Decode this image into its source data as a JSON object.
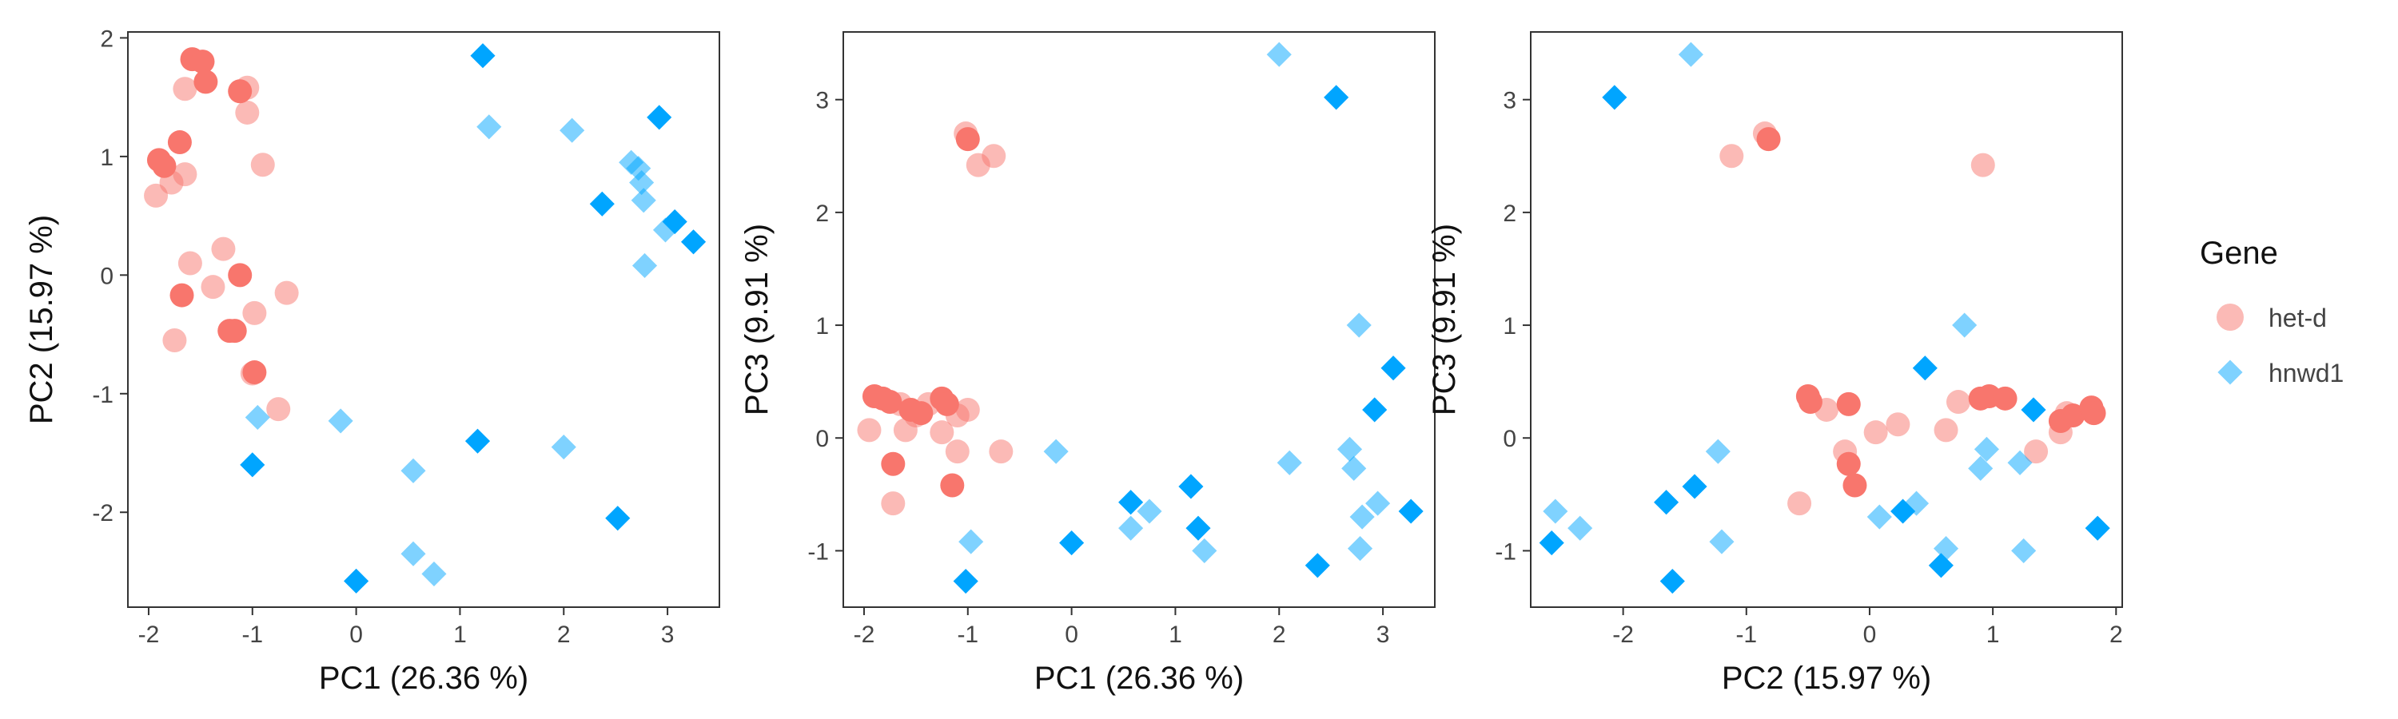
{
  "legend": {
    "title": "Gene",
    "items": [
      {
        "label": "het-d",
        "shape": "circle",
        "color": "#F8766D"
      },
      {
        "label": "hnwd1",
        "shape": "diamond",
        "color": "#00A5FF"
      }
    ]
  },
  "chart_data": [
    {
      "type": "scatter",
      "xlabel": "PC1 (26.36 %)",
      "ylabel": "PC2 (15.97 %)",
      "xlim": [
        -2.2,
        3.5
      ],
      "ylim": [
        -2.8,
        2.05
      ],
      "xticks": [
        -2,
        -1,
        0,
        1,
        2,
        3
      ],
      "yticks": [
        -2,
        -1,
        0,
        1,
        2
      ],
      "grid": false,
      "series": [
        {
          "name": "het-d",
          "light": false,
          "points": [
            [
              -1.58,
              1.82
            ],
            [
              -1.48,
              1.8
            ],
            [
              -1.45,
              1.63
            ],
            [
              -1.12,
              1.55
            ],
            [
              -1.7,
              1.12
            ],
            [
              -1.9,
              0.97
            ],
            [
              -1.85,
              0.92
            ],
            [
              -1.12,
              0.0
            ],
            [
              -1.68,
              -0.17
            ],
            [
              -1.22,
              -0.47
            ],
            [
              -1.17,
              -0.47
            ],
            [
              -0.98,
              -0.82
            ]
          ]
        },
        {
          "name": "het-d",
          "light": true,
          "points": [
            [
              -1.05,
              1.58
            ],
            [
              -1.65,
              1.57
            ],
            [
              -1.05,
              1.37
            ],
            [
              -0.9,
              0.93
            ],
            [
              -1.93,
              0.67
            ],
            [
              -1.78,
              0.78
            ],
            [
              -1.65,
              0.85
            ],
            [
              -1.6,
              0.1
            ],
            [
              -1.28,
              0.22
            ],
            [
              -1.38,
              -0.1
            ],
            [
              -0.98,
              -0.32
            ],
            [
              -0.67,
              -0.15
            ],
            [
              -1.75,
              -0.55
            ],
            [
              -0.75,
              -1.13
            ],
            [
              -1.0,
              -0.83
            ]
          ]
        },
        {
          "name": "hnwd1",
          "light": false,
          "points": [
            [
              1.22,
              1.85
            ],
            [
              2.92,
              1.33
            ],
            [
              2.37,
              0.6
            ],
            [
              3.07,
              0.45
            ],
            [
              3.25,
              0.28
            ],
            [
              1.17,
              -1.4
            ],
            [
              -1.0,
              -1.6
            ],
            [
              2.52,
              -2.05
            ],
            [
              0.0,
              -2.58
            ]
          ]
        },
        {
          "name": "hnwd1",
          "light": true,
          "points": [
            [
              1.28,
              1.25
            ],
            [
              2.08,
              1.22
            ],
            [
              2.65,
              0.95
            ],
            [
              2.72,
              0.9
            ],
            [
              2.75,
              0.78
            ],
            [
              2.77,
              0.63
            ],
            [
              2.98,
              0.38
            ],
            [
              2.78,
              0.08
            ],
            [
              -0.95,
              -1.2
            ],
            [
              -0.15,
              -1.23
            ],
            [
              2.0,
              -1.45
            ],
            [
              0.55,
              -1.65
            ],
            [
              0.55,
              -2.35
            ],
            [
              0.75,
              -2.52
            ]
          ]
        }
      ]
    },
    {
      "type": "scatter",
      "xlabel": "PC1 (26.36 %)",
      "ylabel": "PC3 (9.91 %)",
      "xlim": [
        -2.2,
        3.5
      ],
      "ylim": [
        -1.5,
        3.6
      ],
      "xticks": [
        -2,
        -1,
        0,
        1,
        2,
        3
      ],
      "yticks": [
        -1,
        0,
        1,
        2,
        3
      ],
      "grid": false,
      "series": [
        {
          "name": "het-d",
          "light": false,
          "points": [
            [
              -1.0,
              2.65
            ],
            [
              -1.9,
              0.37
            ],
            [
              -1.82,
              0.35
            ],
            [
              -1.75,
              0.32
            ],
            [
              -1.55,
              0.25
            ],
            [
              -1.45,
              0.22
            ],
            [
              -1.25,
              0.35
            ],
            [
              -1.2,
              0.3
            ],
            [
              -1.72,
              -0.23
            ],
            [
              -1.15,
              -0.42
            ]
          ]
        },
        {
          "name": "het-d",
          "light": true,
          "points": [
            [
              -1.02,
              2.7
            ],
            [
              -0.75,
              2.5
            ],
            [
              -0.9,
              2.42
            ],
            [
              -1.95,
              0.07
            ],
            [
              -1.6,
              0.07
            ],
            [
              -1.38,
              0.3
            ],
            [
              -1.1,
              0.2
            ],
            [
              -1.0,
              0.25
            ],
            [
              -1.25,
              0.05
            ],
            [
              -1.1,
              -0.12
            ],
            [
              -0.68,
              -0.12
            ],
            [
              -1.72,
              -0.58
            ],
            [
              -1.65,
              0.3
            ],
            [
              -1.5,
              0.2
            ]
          ]
        },
        {
          "name": "hnwd1",
          "light": false,
          "points": [
            [
              2.55,
              3.02
            ],
            [
              3.1,
              0.62
            ],
            [
              2.92,
              0.25
            ],
            [
              1.15,
              -0.43
            ],
            [
              0.57,
              -0.57
            ],
            [
              1.22,
              -0.8
            ],
            [
              0.0,
              -0.93
            ],
            [
              3.27,
              -0.65
            ],
            [
              -1.02,
              -1.27
            ],
            [
              2.37,
              -1.13
            ]
          ]
        },
        {
          "name": "hnwd1",
          "light": true,
          "points": [
            [
              2.0,
              3.4
            ],
            [
              2.77,
              1.0
            ],
            [
              2.68,
              -0.1
            ],
            [
              2.72,
              -0.27
            ],
            [
              2.1,
              -0.22
            ],
            [
              -0.15,
              -0.12
            ],
            [
              0.75,
              -0.65
            ],
            [
              0.57,
              -0.8
            ],
            [
              2.95,
              -0.58
            ],
            [
              2.8,
              -0.7
            ],
            [
              1.28,
              -1.0
            ],
            [
              -0.97,
              -0.92
            ],
            [
              2.78,
              -0.98
            ]
          ]
        }
      ]
    },
    {
      "type": "scatter",
      "xlabel": "PC2 (15.97 %)",
      "ylabel": "PC3 (9.91 %)",
      "xlim": [
        -2.75,
        2.05
      ],
      "ylim": [
        -1.5,
        3.6
      ],
      "xticks": [
        -2,
        -1,
        0,
        1,
        2
      ],
      "yticks": [
        -1,
        0,
        1,
        2,
        3
      ],
      "grid": false,
      "series": [
        {
          "name": "het-d",
          "light": false,
          "points": [
            [
              -0.82,
              2.65
            ],
            [
              -0.5,
              0.37
            ],
            [
              -0.48,
              0.32
            ],
            [
              -0.17,
              0.3
            ],
            [
              0.9,
              0.35
            ],
            [
              0.97,
              0.37
            ],
            [
              1.1,
              0.35
            ],
            [
              1.55,
              0.15
            ],
            [
              1.65,
              0.2
            ],
            [
              1.8,
              0.27
            ],
            [
              1.82,
              0.22
            ],
            [
              -0.17,
              -0.23
            ],
            [
              -0.12,
              -0.42
            ]
          ]
        },
        {
          "name": "het-d",
          "light": true,
          "points": [
            [
              -0.85,
              2.7
            ],
            [
              -1.12,
              2.5
            ],
            [
              0.92,
              2.42
            ],
            [
              -0.35,
              0.25
            ],
            [
              0.05,
              0.05
            ],
            [
              0.23,
              0.12
            ],
            [
              -0.2,
              -0.12
            ],
            [
              0.62,
              0.07
            ],
            [
              0.72,
              0.32
            ],
            [
              1.6,
              0.22
            ],
            [
              1.35,
              -0.12
            ],
            [
              1.55,
              0.05
            ],
            [
              -0.57,
              -0.58
            ]
          ]
        },
        {
          "name": "hnwd1",
          "light": false,
          "points": [
            [
              -2.07,
              3.02
            ],
            [
              0.45,
              0.62
            ],
            [
              1.33,
              0.25
            ],
            [
              -1.42,
              -0.43
            ],
            [
              -1.65,
              -0.57
            ],
            [
              0.27,
              -0.65
            ],
            [
              -2.58,
              -0.93
            ],
            [
              1.85,
              -0.8
            ],
            [
              -1.6,
              -1.27
            ],
            [
              0.58,
              -1.13
            ]
          ]
        },
        {
          "name": "hnwd1",
          "light": true,
          "points": [
            [
              -1.45,
              3.4
            ],
            [
              0.77,
              1.0
            ],
            [
              0.95,
              -0.1
            ],
            [
              0.9,
              -0.27
            ],
            [
              1.22,
              -0.22
            ],
            [
              -1.23,
              -0.12
            ],
            [
              -2.55,
              -0.65
            ],
            [
              -2.35,
              -0.8
            ],
            [
              0.08,
              -0.7
            ],
            [
              0.38,
              -0.58
            ],
            [
              -1.2,
              -0.92
            ],
            [
              0.62,
              -0.98
            ],
            [
              1.25,
              -1.0
            ]
          ]
        }
      ]
    }
  ]
}
